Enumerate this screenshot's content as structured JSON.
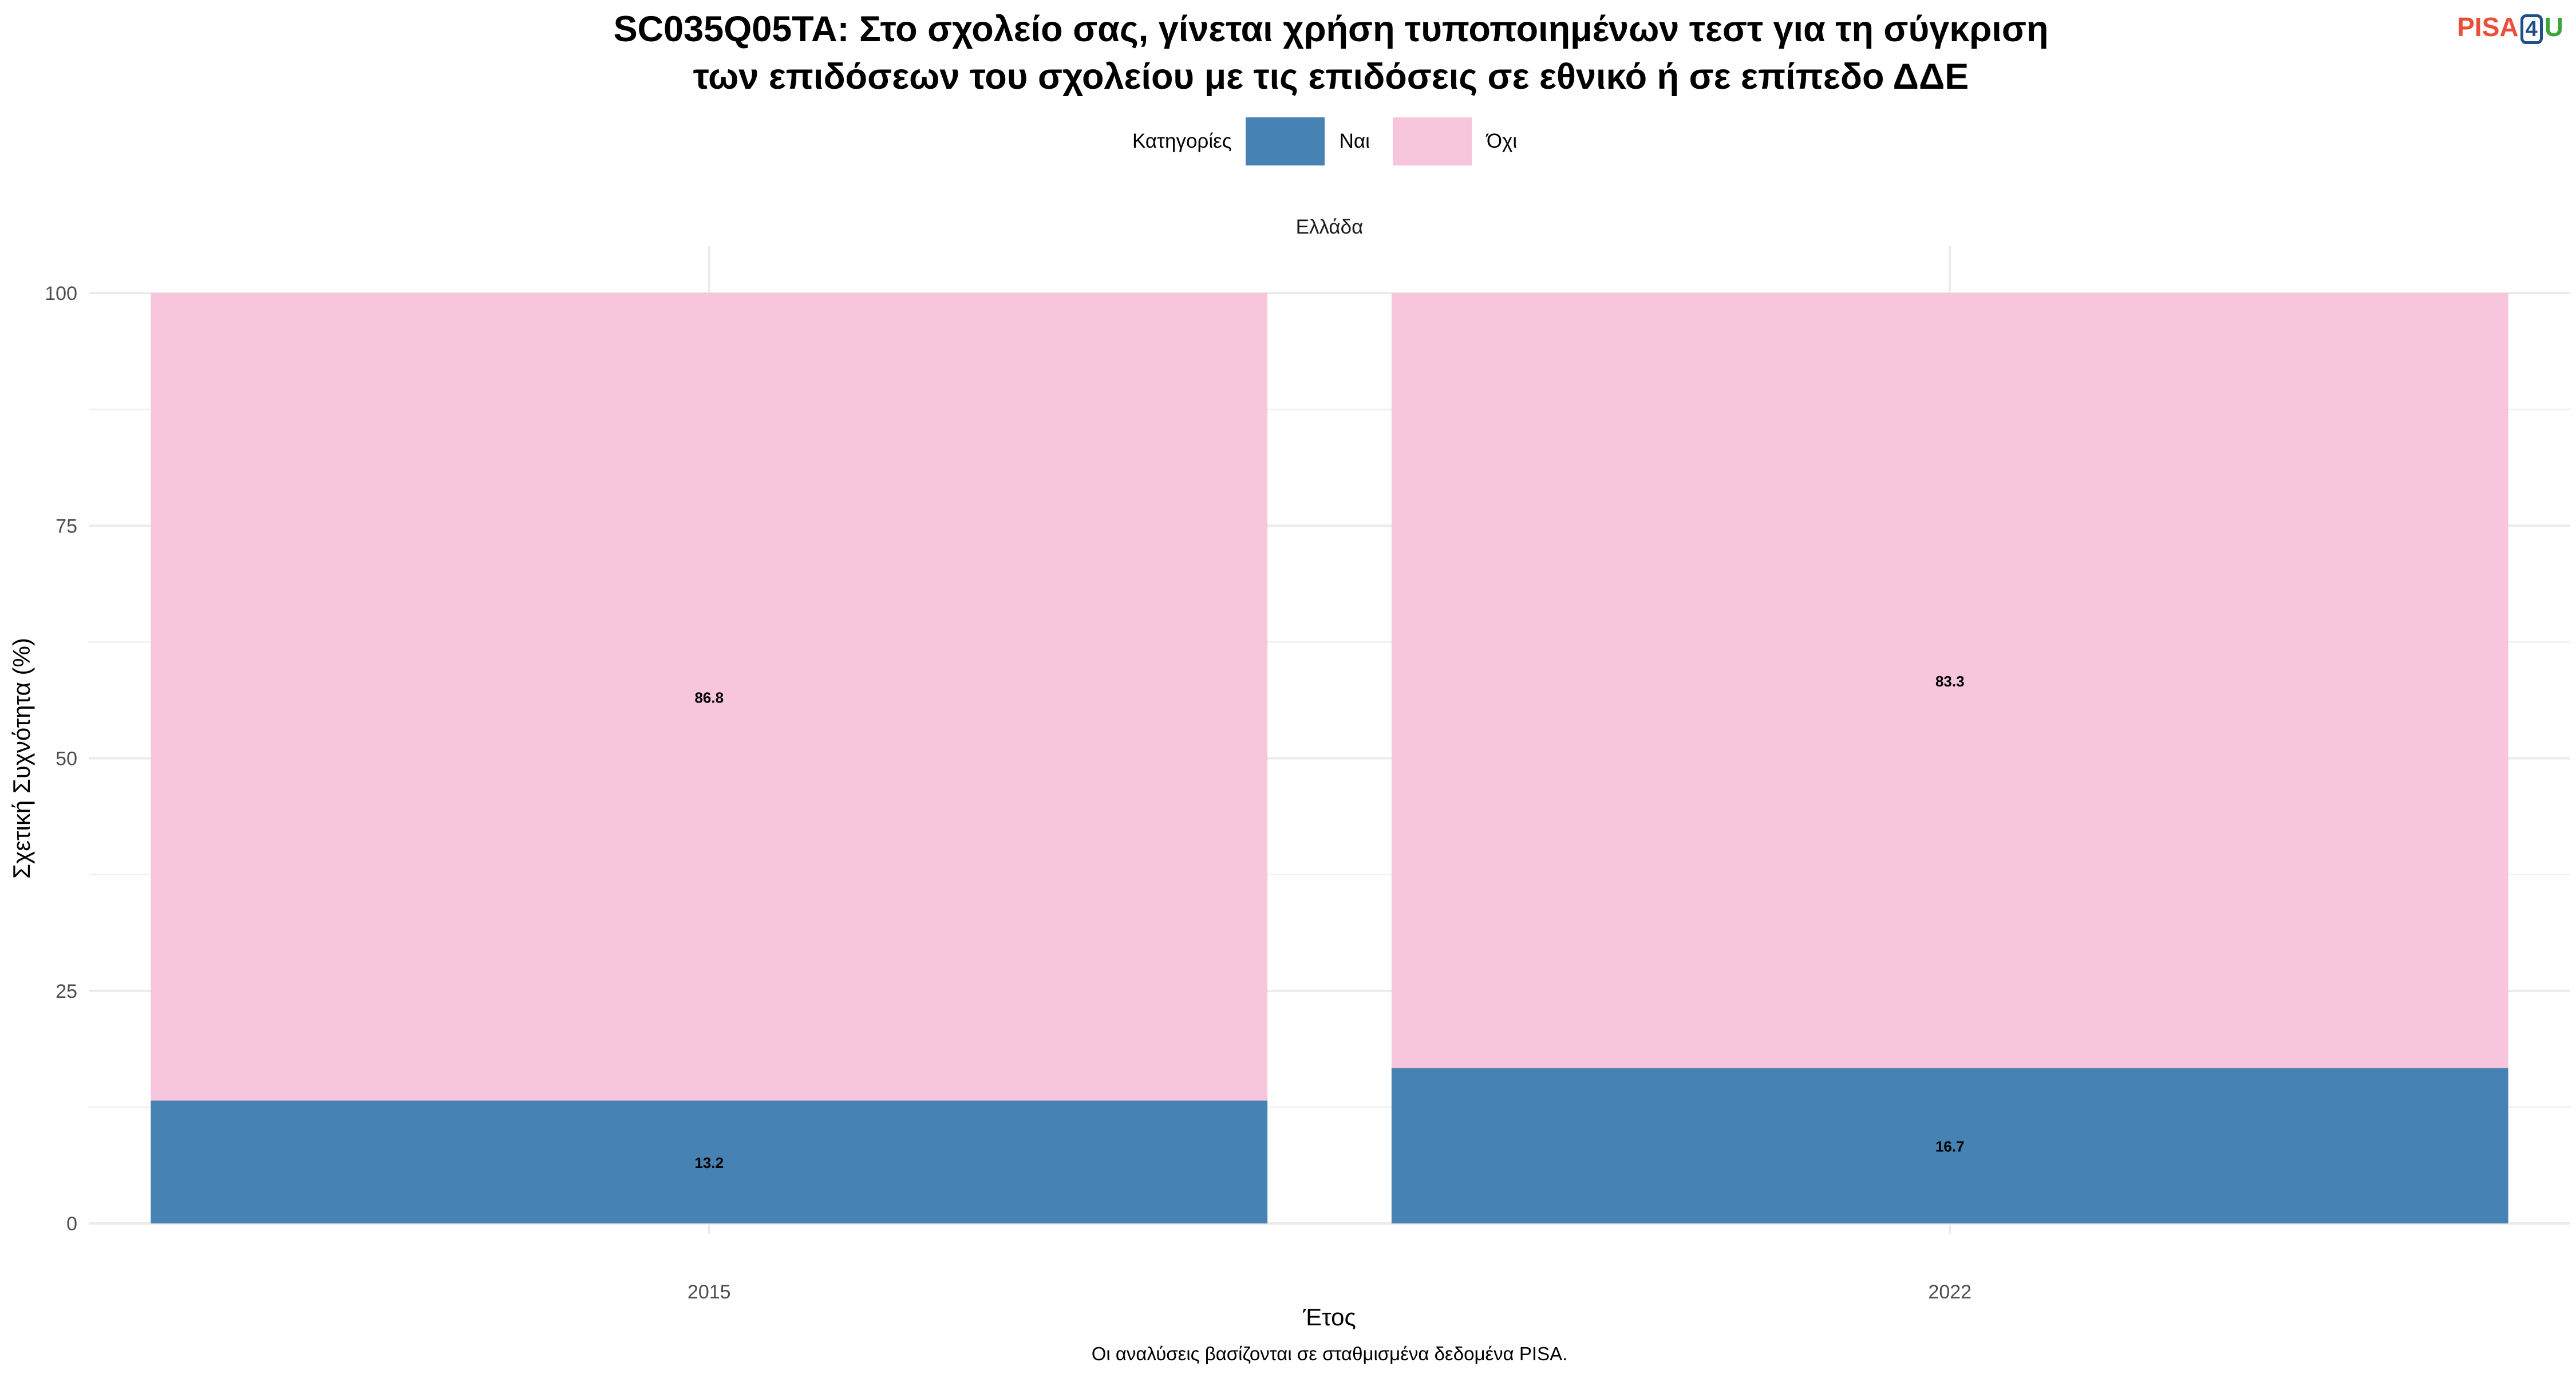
{
  "title_line1": "SC035Q05TA: Στο σχολείο σας, γίνεται χρήση τυποποιημένων τεστ για τη σύγκριση",
  "title_line2": "των επιδόσεων του σχολείου με τις επιδόσεις σε εθνικό ή σε επίπεδο ΔΔΕ",
  "logo": {
    "part1": "PISA",
    "part2": "4",
    "part3": "U",
    "colors": [
      "#e8503a",
      "#1f4e8c",
      "#3aa63a"
    ]
  },
  "legend": {
    "title": "Κατηγορίες",
    "items": [
      {
        "label": "Ναι",
        "color": "#4682b4"
      },
      {
        "label": "Όχι",
        "color": "#f7c6dc"
      }
    ]
  },
  "caption": "Οι αναλύσεις βασίζονται σε σταθμισμένα δεδομένα PISA.",
  "chart_data": {
    "type": "bar",
    "stacked": true,
    "facet": "Ελλάδα",
    "categories": [
      "2015",
      "2022"
    ],
    "series": [
      {
        "name": "Ναι",
        "color": "#4682b4",
        "values": [
          13.2,
          16.7
        ]
      },
      {
        "name": "Όχι",
        "color": "#f7c6dc",
        "values": [
          86.8,
          83.3
        ]
      }
    ],
    "xlabel": "Έτος",
    "ylabel": "Σχετική Συχνότητα (%)",
    "ylim": [
      0,
      100
    ],
    "yticks": [
      0,
      25,
      50,
      75,
      100
    ],
    "grid": true,
    "legend_position": "top"
  }
}
